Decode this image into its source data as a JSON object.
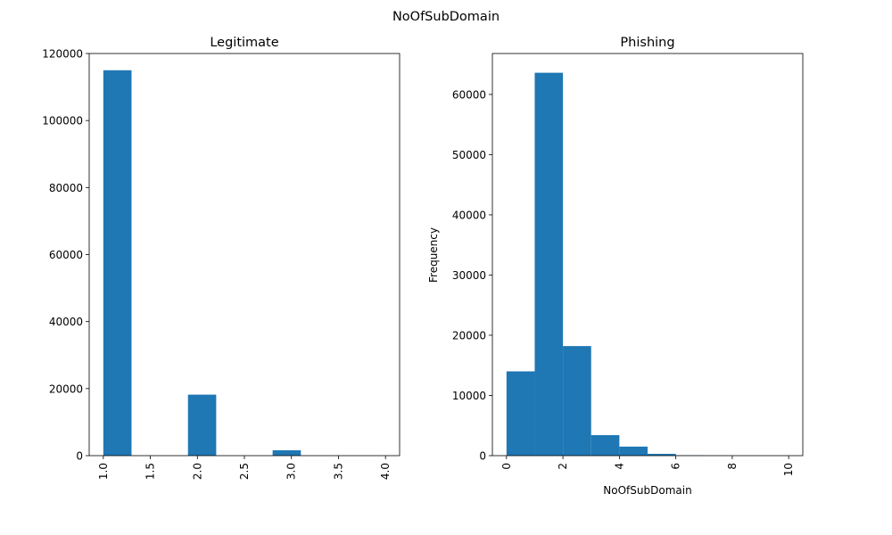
{
  "figure": {
    "suptitle": "NoOfSubDomain"
  },
  "colors": {
    "bar": "#1f77b4",
    "axis": "#000000",
    "background": "#ffffff"
  },
  "chart_data": [
    {
      "type": "bar",
      "subtype": "histogram",
      "title": "Legitimate",
      "xlabel": "",
      "ylabel": "",
      "xlim": [
        0.85,
        4.15
      ],
      "ylim": [
        0,
        120000
      ],
      "grid": false,
      "bins": [
        {
          "start": 1.0,
          "end": 1.3,
          "value": 115000
        },
        {
          "start": 1.3,
          "end": 1.6,
          "value": 0
        },
        {
          "start": 1.6,
          "end": 1.9,
          "value": 0
        },
        {
          "start": 1.9,
          "end": 2.2,
          "value": 18200
        },
        {
          "start": 2.2,
          "end": 2.5,
          "value": 0
        },
        {
          "start": 2.5,
          "end": 2.8,
          "value": 0
        },
        {
          "start": 2.8,
          "end": 3.1,
          "value": 1600
        },
        {
          "start": 3.1,
          "end": 3.4,
          "value": 0
        },
        {
          "start": 3.4,
          "end": 3.7,
          "value": 0
        },
        {
          "start": 3.7,
          "end": 4.0,
          "value": 0
        }
      ],
      "xticks": [
        1.0,
        1.5,
        2.0,
        2.5,
        3.0,
        3.5,
        4.0
      ],
      "xtick_labels": [
        "1.0",
        "1.5",
        "2.0",
        "2.5",
        "3.0",
        "3.5",
        "4.0"
      ],
      "yticks": [
        0,
        20000,
        40000,
        60000,
        80000,
        100000,
        120000
      ],
      "ytick_labels": [
        "0",
        "20000",
        "40000",
        "60000",
        "80000",
        "100000",
        "120000"
      ]
    },
    {
      "type": "bar",
      "subtype": "histogram",
      "title": "Phishing",
      "xlabel": "NoOfSubDomain",
      "ylabel": "Frequency",
      "xlim": [
        -0.5,
        10.5
      ],
      "ylim": [
        0,
        66800
      ],
      "grid": false,
      "bins": [
        {
          "start": 0,
          "end": 1,
          "value": 14000
        },
        {
          "start": 1,
          "end": 2,
          "value": 63600
        },
        {
          "start": 2,
          "end": 3,
          "value": 18200
        },
        {
          "start": 3,
          "end": 4,
          "value": 3400
        },
        {
          "start": 4,
          "end": 5,
          "value": 1500
        },
        {
          "start": 5,
          "end": 6,
          "value": 300
        },
        {
          "start": 6,
          "end": 7,
          "value": 50
        },
        {
          "start": 7,
          "end": 8,
          "value": 20
        },
        {
          "start": 8,
          "end": 9,
          "value": 10
        },
        {
          "start": 9,
          "end": 10,
          "value": 5
        }
      ],
      "xticks": [
        0,
        2,
        4,
        6,
        8,
        10
      ],
      "xtick_labels": [
        "0",
        "2",
        "4",
        "6",
        "8",
        "10"
      ],
      "yticks": [
        0,
        10000,
        20000,
        30000,
        40000,
        50000,
        60000
      ],
      "ytick_labels": [
        "0",
        "10000",
        "20000",
        "30000",
        "40000",
        "50000",
        "60000"
      ]
    }
  ]
}
